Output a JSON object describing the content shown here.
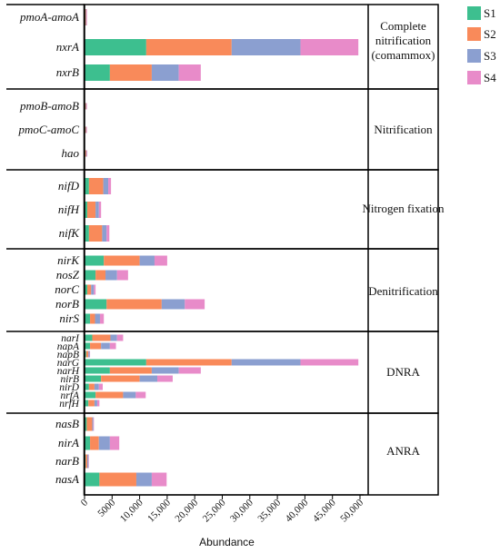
{
  "chart_data": {
    "type": "bar",
    "orientation": "horizontal",
    "stacked": true,
    "xlabel": "Abundance",
    "xlim": [
      0,
      50000
    ],
    "xticks": [
      0,
      5000,
      10000,
      15000,
      20000,
      25000,
      30000,
      35000,
      40000,
      45000,
      50000
    ],
    "xtick_labels": [
      "0",
      "5000",
      "10,000",
      "15,000",
      "20,000",
      "25,000",
      "30,000",
      "35,000",
      "40,000",
      "45,000",
      "50,000"
    ],
    "grid": false,
    "legend_position": "right",
    "series": [
      {
        "name": "S1",
        "color": "#3dbf8f"
      },
      {
        "name": "S2",
        "color": "#f98a5a"
      },
      {
        "name": "S3",
        "color": "#8b9fd0"
      },
      {
        "name": "S4",
        "color": "#e88bc9"
      }
    ],
    "groups": [
      {
        "process": "Complete\nnitrification\n(comammox)",
        "genes": [
          {
            "gene": "pmoA-amoA",
            "values": [
              100,
              150,
              100,
              100
            ]
          },
          {
            "gene": "nxrA",
            "values": [
              11200,
              15500,
              12500,
              10500
            ]
          },
          {
            "gene": "nxrB",
            "values": [
              4600,
              7600,
              4900,
              4000
            ]
          }
        ]
      },
      {
        "process": "Nitrification",
        "genes": [
          {
            "gene": "pmoB-amoB",
            "values": [
              100,
              150,
              100,
              100
            ]
          },
          {
            "gene": "pmoC-amoC",
            "values": [
              100,
              150,
              100,
              100
            ]
          },
          {
            "gene": "hao",
            "values": [
              100,
              200,
              100,
              100
            ]
          }
        ]
      },
      {
        "process": "Nitrogen fixation",
        "genes": [
          {
            "gene": "nifD",
            "values": [
              800,
              2600,
              900,
              500
            ]
          },
          {
            "gene": "nifH",
            "values": [
              500,
              1500,
              600,
              400
            ]
          },
          {
            "gene": "nifK",
            "values": [
              800,
              2400,
              800,
              500
            ]
          }
        ]
      },
      {
        "process": "Denitrification",
        "genes": [
          {
            "gene": "nirK",
            "values": [
              3500,
              6500,
              2700,
              2300
            ]
          },
          {
            "gene": "nosZ",
            "values": [
              2000,
              1800,
              2100,
              2000
            ]
          },
          {
            "gene": "norC",
            "values": [
              500,
              700,
              500,
              300
            ]
          },
          {
            "gene": "norB",
            "values": [
              4000,
              10000,
              4200,
              3600
            ]
          },
          {
            "gene": "nirS",
            "values": [
              1000,
              900,
              900,
              700
            ]
          }
        ]
      },
      {
        "process": "DNRA",
        "genes": [
          {
            "gene": "narI",
            "values": [
              1400,
              3300,
              1200,
              1100
            ]
          },
          {
            "gene": "napA",
            "values": [
              1000,
              2000,
              1600,
              1100
            ]
          },
          {
            "gene": "napB",
            "values": [
              300,
              400,
              200,
              100
            ]
          },
          {
            "gene": "narG",
            "values": [
              11200,
              15500,
              12500,
              10500
            ]
          },
          {
            "gene": "narH",
            "values": [
              4600,
              7600,
              4900,
              4000
            ]
          },
          {
            "gene": "nirB",
            "values": [
              3000,
              7000,
              3200,
              2800
            ]
          },
          {
            "gene": "nirD",
            "values": [
              800,
              1000,
              800,
              700
            ]
          },
          {
            "gene": "nrfA",
            "values": [
              2000,
              5000,
              2300,
              1800
            ]
          },
          {
            "gene": "nrfH",
            "values": [
              700,
              1100,
              500,
              400
            ]
          }
        ]
      },
      {
        "process": "ANRA",
        "genes": [
          {
            "gene": "nasB",
            "values": [
              400,
              1000,
              200,
              100
            ]
          },
          {
            "gene": "nirA",
            "values": [
              1000,
              1600,
              2000,
              1700
            ]
          },
          {
            "gene": "narB",
            "values": [
              200,
              300,
              200,
              100
            ]
          },
          {
            "gene": "nasA",
            "values": [
              2700,
              6700,
              2800,
              2700
            ]
          }
        ]
      }
    ]
  }
}
